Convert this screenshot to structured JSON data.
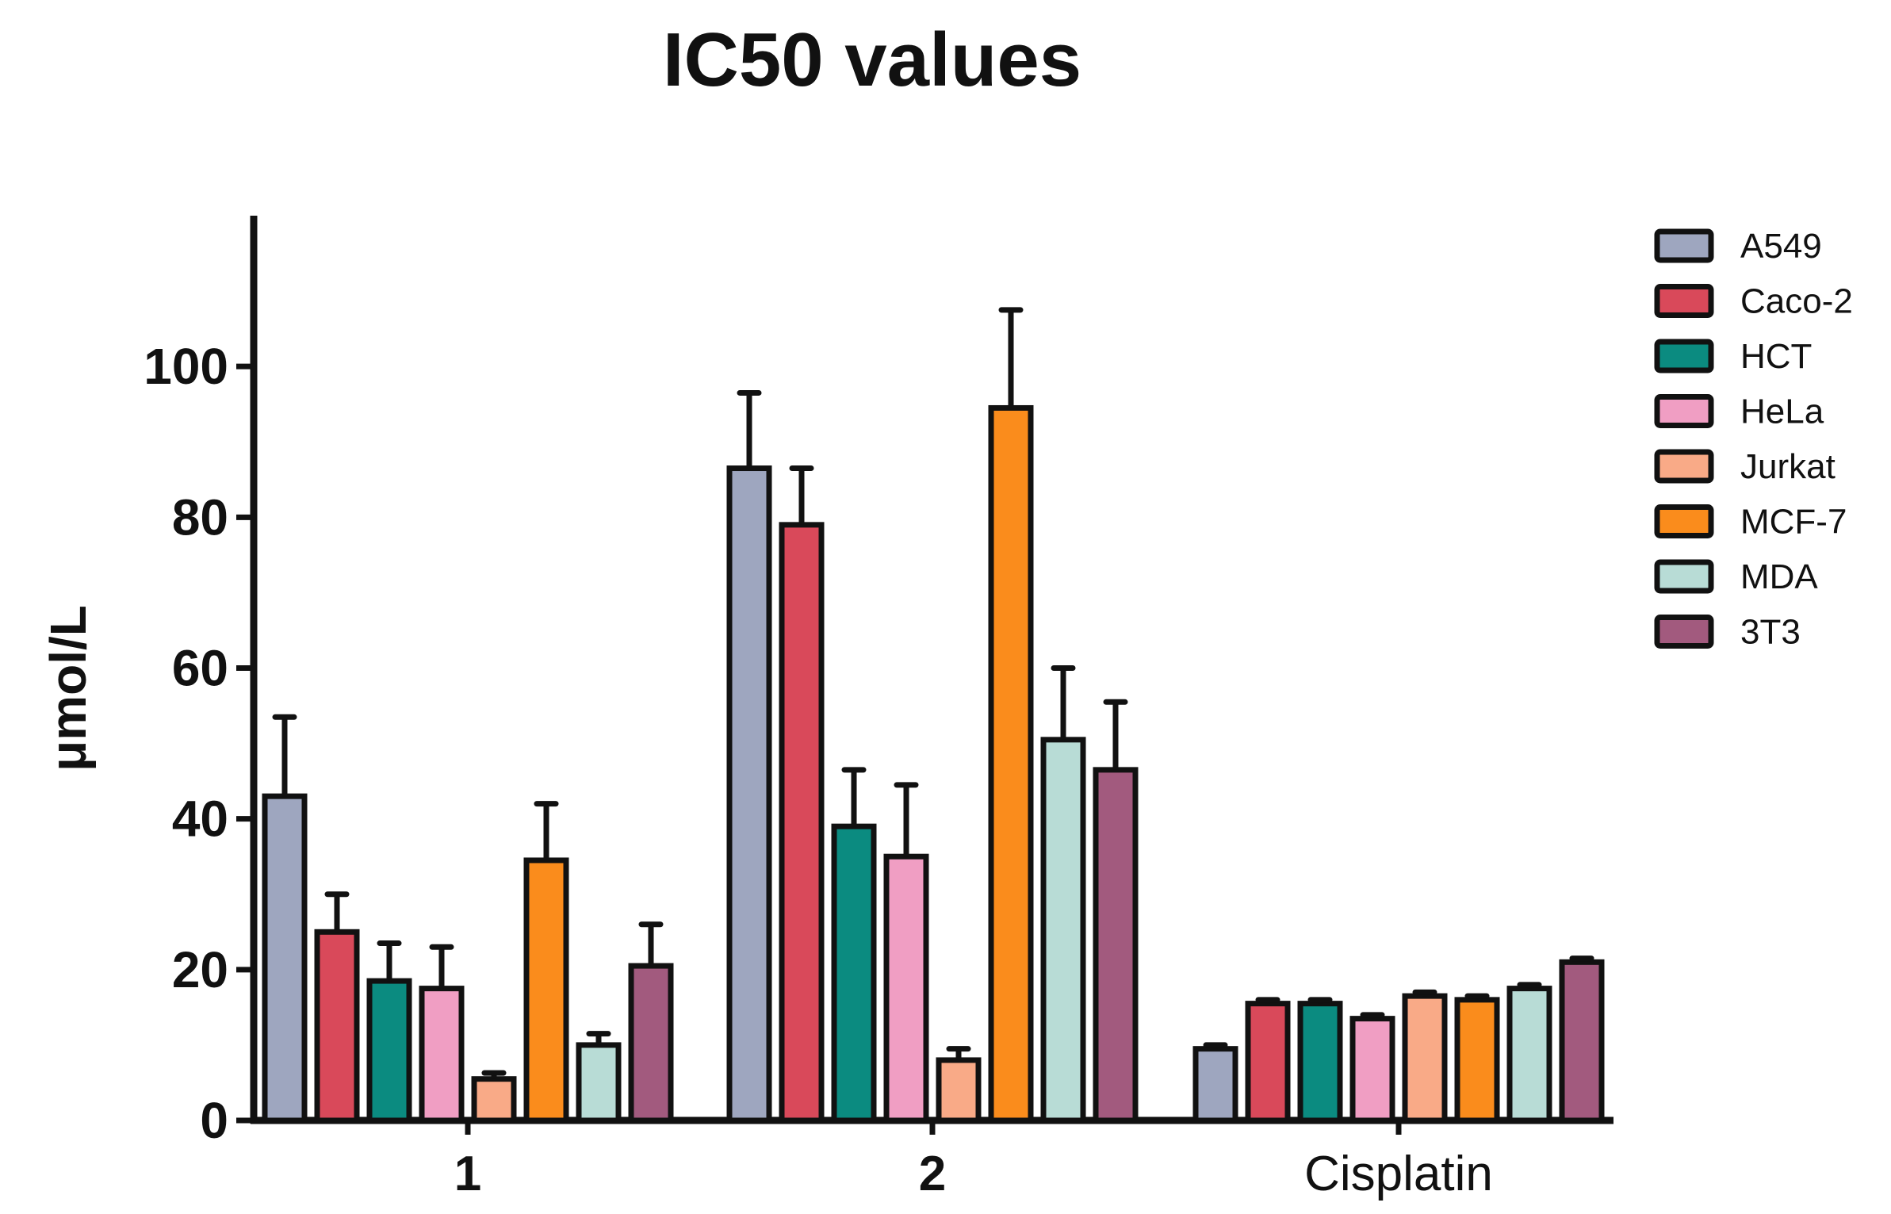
{
  "chart_data": {
    "type": "bar",
    "title": "IC50 values",
    "xlabel": "",
    "ylabel": "μmol/L",
    "ylim": [
      0,
      120
    ],
    "yticks": [
      0,
      20,
      40,
      60,
      80,
      100
    ],
    "categories": [
      "1",
      "2",
      "Cisplatin"
    ],
    "category_bold": [
      true,
      true,
      false
    ],
    "legend_position": "right",
    "series": [
      {
        "name": "A549",
        "color": "#9ea6bf",
        "values": [
          43,
          86.5,
          9.5
        ],
        "errors": [
          10.5,
          10,
          0.5
        ]
      },
      {
        "name": "Caco-2",
        "color": "#d9495a",
        "values": [
          25,
          79,
          15.5
        ],
        "errors": [
          5,
          7.5,
          0.5
        ]
      },
      {
        "name": "HCT",
        "color": "#0b8b80",
        "values": [
          18.5,
          39,
          15.5
        ],
        "errors": [
          5,
          7.5,
          0.5
        ]
      },
      {
        "name": "HeLa",
        "color": "#f09ec3",
        "values": [
          17.5,
          35,
          13.5
        ],
        "errors": [
          5.5,
          9.5,
          0.5
        ]
      },
      {
        "name": "Jurkat",
        "color": "#f9aa87",
        "values": [
          5.5,
          8,
          16.5
        ],
        "errors": [
          0.8,
          1.5,
          0.5
        ]
      },
      {
        "name": "MCF-7",
        "color": "#fa8c1c",
        "values": [
          34.5,
          94.5,
          16
        ],
        "errors": [
          7.5,
          13,
          0.5
        ]
      },
      {
        "name": "MDA",
        "color": "#b8dcd6",
        "values": [
          10,
          50.5,
          17.5
        ],
        "errors": [
          1.5,
          9.5,
          0.5
        ]
      },
      {
        "name": "3T3",
        "color": "#a25a7e",
        "values": [
          20.5,
          46.5,
          21
        ],
        "errors": [
          5.5,
          9,
          0.5
        ]
      }
    ]
  }
}
